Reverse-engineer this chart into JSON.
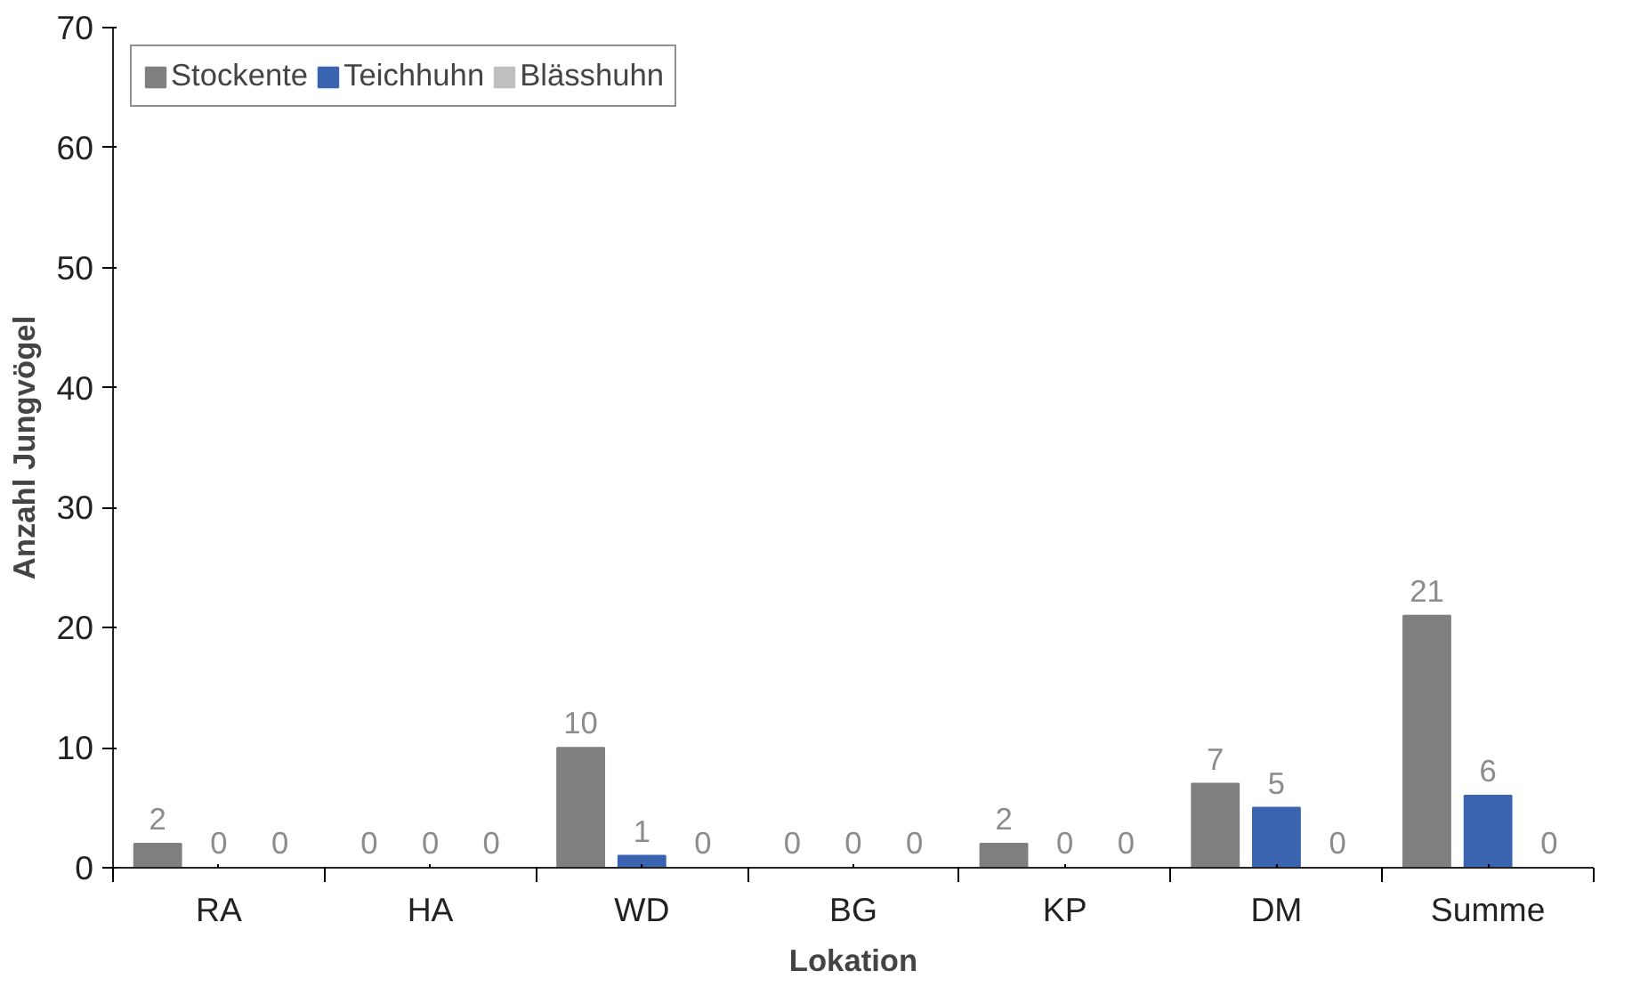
{
  "chart_data": {
    "type": "bar",
    "xlabel": "Lokation",
    "ylabel": "Anzahl Jungvögel",
    "categories": [
      "RA",
      "HA",
      "WD",
      "BG",
      "KP",
      "DM",
      "Summe"
    ],
    "series": [
      {
        "name": "Stockente",
        "color": "#7f7f7f",
        "values": [
          2,
          0,
          10,
          0,
          2,
          7,
          21
        ]
      },
      {
        "name": "Teichhuhn",
        "color": "#3a63b0",
        "values": [
          0,
          0,
          1,
          0,
          0,
          5,
          6
        ]
      },
      {
        "name": "Blässhuhn",
        "color": "#bfbfbf",
        "values": [
          0,
          0,
          0,
          0,
          0,
          0,
          0
        ]
      }
    ],
    "ylim": [
      0,
      70
    ],
    "yticks": [
      0,
      10,
      20,
      30,
      40,
      50,
      60,
      70
    ],
    "grid": false,
    "legend": "top left",
    "data_labels": true
  }
}
